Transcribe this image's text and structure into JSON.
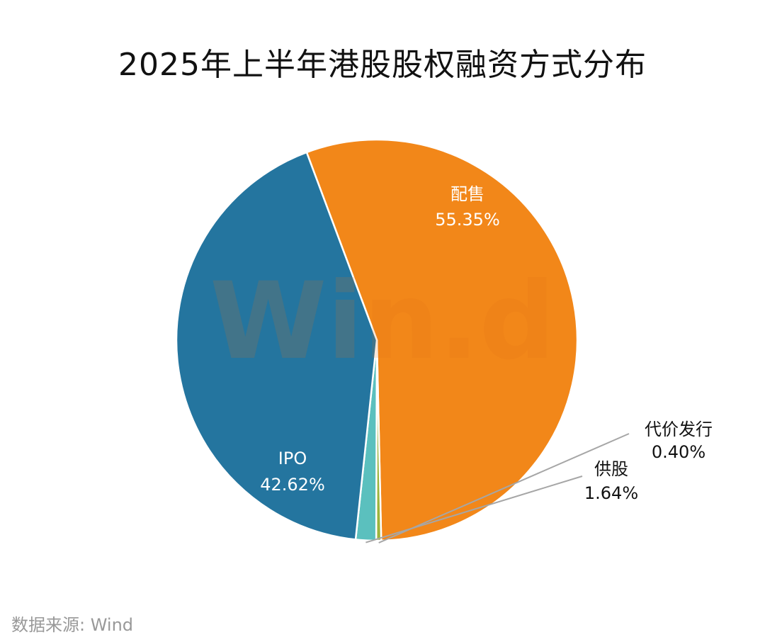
{
  "watermark": "Win.d",
  "source": "数据来源: Wind",
  "chart_data": {
    "type": "pie",
    "title": "2025年上半年港股股权融资方式分布",
    "slices": [
      {
        "name": "配售",
        "value": 55.35,
        "label": "55.35%",
        "color": "#F28719"
      },
      {
        "name": "代价发行",
        "value": 0.4,
        "label": "0.40%",
        "color": "#9CB43C"
      },
      {
        "name": "供股",
        "value": 1.64,
        "label": "1.64%",
        "color": "#5BC0BE"
      },
      {
        "name": "IPO",
        "value": 42.62,
        "label": "42.62%",
        "color": "#24759F"
      }
    ],
    "label_placement": [
      "inside",
      "outside",
      "outside",
      "inside"
    ]
  }
}
